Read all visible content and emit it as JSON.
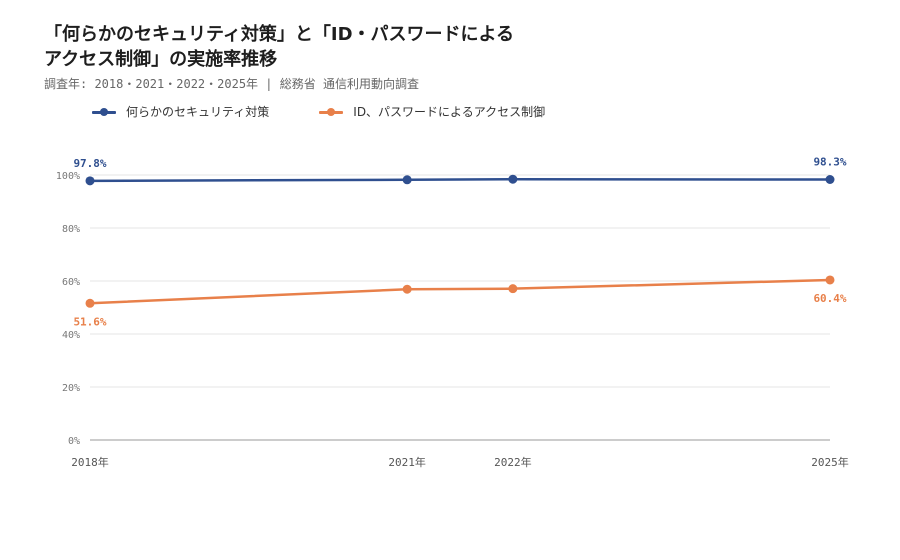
{
  "title": {
    "line1": "「何らかのセキュリティ対策」と「ID・パスワードによる",
    "line2": "アクセス制御」の実施率推移"
  },
  "subtitle": "調査年: 2018・2021・2022・2025年 | 総務省 通信利用動向調査",
  "colors": {
    "security": "#2f4f8f",
    "access": "#e8804a",
    "grid": "#e6e6e6",
    "axis": "#999999"
  },
  "chart_data": {
    "type": "line",
    "x": [
      2018,
      2021,
      2022,
      2025
    ],
    "categories": [
      "2018年",
      "2021年",
      "2022年",
      "2025年"
    ],
    "ylim": [
      0,
      100
    ],
    "yticks": [
      0,
      20,
      40,
      60,
      80,
      100
    ],
    "ytick_labels": [
      "0%",
      "20%",
      "40%",
      "60%",
      "80%",
      "100%"
    ],
    "grid": true,
    "legend_position": "top-left",
    "series": [
      {
        "name": "何らかのセキュリティ対策",
        "color": "#2f4f8f",
        "values": [
          97.8,
          98.2,
          98.4,
          98.3
        ],
        "labels": [
          {
            "index": 0,
            "text": "97.8%",
            "position": "above"
          },
          {
            "index": 3,
            "text": "98.3%",
            "position": "above"
          }
        ]
      },
      {
        "name": "ID、パスワードによるアクセス制御",
        "color": "#e8804a",
        "values": [
          51.6,
          56.9,
          57.1,
          60.4
        ],
        "labels": [
          {
            "index": 0,
            "text": "51.6%",
            "position": "below"
          },
          {
            "index": 3,
            "text": "60.4%",
            "position": "below"
          }
        ]
      }
    ]
  }
}
